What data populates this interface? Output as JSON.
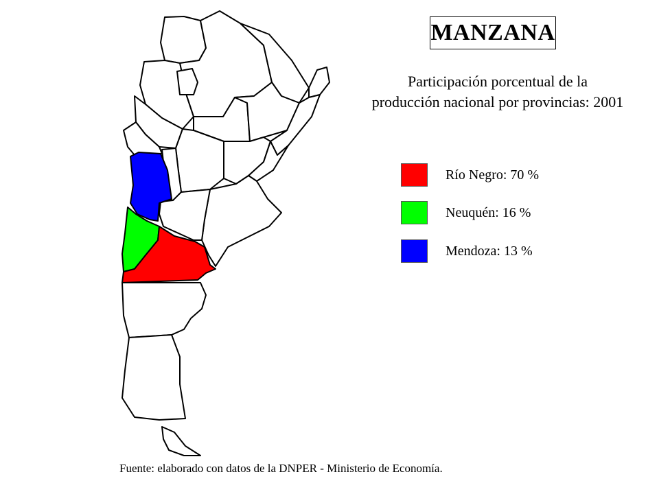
{
  "title": "MANZANA",
  "subtitle": {
    "line1": "Participación porcentual de la",
    "line2": "producción nacional por provincias: 2001"
  },
  "legend": [
    {
      "label": "Río Negro: 70 %",
      "color": "#ff0000",
      "province": "Río Negro",
      "share": 70
    },
    {
      "label": "Neuquén: 16 %",
      "color": "#00ff00",
      "province": "Neuquén",
      "share": 16
    },
    {
      "label": "Mendoza: 13 %",
      "color": "#0000ff",
      "province": "Mendoza",
      "share": 13
    }
  ],
  "source": "Fuente: elaborado con datos de la DNPER - Ministerio de Economía.",
  "map": {
    "region": "Argentina",
    "highlighted_provinces": [
      "Río Negro",
      "Neuquén",
      "Mendoza"
    ],
    "base_fill": "#ffffff",
    "border_color": "#000000"
  }
}
